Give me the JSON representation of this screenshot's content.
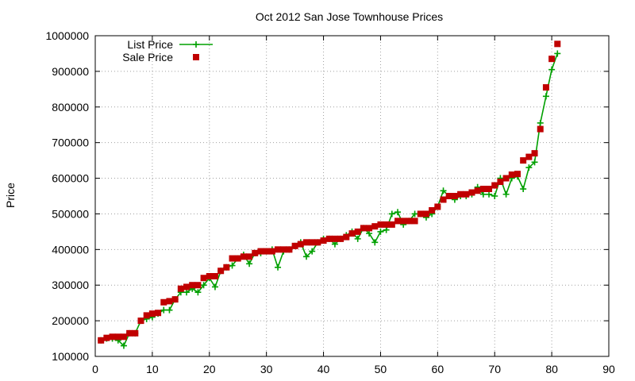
{
  "chart_data": {
    "type": "line",
    "title": "Oct 2012 San Jose Townhouse Prices",
    "xlabel": "",
    "ylabel": "Price",
    "xlim": [
      0,
      90
    ],
    "ylim": [
      100000,
      1000000
    ],
    "xticks": [
      0,
      10,
      20,
      30,
      40,
      50,
      60,
      70,
      80,
      90
    ],
    "yticks": [
      100000,
      200000,
      300000,
      400000,
      500000,
      600000,
      700000,
      800000,
      900000,
      1000000
    ],
    "grid": true,
    "legend_position": "top-left",
    "series": [
      {
        "name": "List Price",
        "style": "line+plus",
        "color": "#00a000",
        "x": [
          1,
          2,
          3,
          4,
          5,
          6,
          7,
          8,
          9,
          10,
          11,
          12,
          13,
          14,
          15,
          16,
          17,
          18,
          19,
          20,
          21,
          22,
          23,
          24,
          25,
          26,
          27,
          28,
          29,
          30,
          31,
          32,
          33,
          34,
          35,
          36,
          37,
          38,
          39,
          40,
          41,
          42,
          43,
          44,
          45,
          46,
          47,
          48,
          49,
          50,
          51,
          52,
          53,
          54,
          55,
          56,
          57,
          58,
          59,
          60,
          61,
          62,
          63,
          64,
          65,
          66,
          67,
          68,
          69,
          70,
          71,
          72,
          73,
          74,
          75,
          76,
          77,
          78,
          79,
          80,
          81
        ],
        "y": [
          145000,
          150000,
          150000,
          145000,
          130000,
          165000,
          165000,
          200000,
          205000,
          210000,
          220000,
          230000,
          230000,
          260000,
          280000,
          280000,
          290000,
          280000,
          300000,
          320000,
          295000,
          340000,
          350000,
          355000,
          375000,
          385000,
          360000,
          390000,
          390000,
          395000,
          400000,
          350000,
          395000,
          400000,
          410000,
          420000,
          380000,
          395000,
          420000,
          430000,
          430000,
          415000,
          430000,
          440000,
          450000,
          430000,
          460000,
          445000,
          420000,
          450000,
          455000,
          500000,
          505000,
          470000,
          480000,
          500000,
          500000,
          490000,
          500000,
          520000,
          565000,
          550000,
          540000,
          550000,
          550000,
          555000,
          575000,
          555000,
          555000,
          550000,
          600000,
          555000,
          600000,
          605000,
          570000,
          630000,
          645000,
          755000,
          830000,
          905000,
          950000
        ]
      },
      {
        "name": "Sale Price",
        "style": "squares",
        "color": "#c00000",
        "x": [
          1,
          2,
          3,
          4,
          5,
          6,
          7,
          8,
          9,
          10,
          11,
          12,
          13,
          14,
          15,
          16,
          17,
          18,
          19,
          20,
          21,
          22,
          23,
          24,
          25,
          26,
          27,
          28,
          29,
          30,
          31,
          32,
          33,
          34,
          35,
          36,
          37,
          38,
          39,
          40,
          41,
          42,
          43,
          44,
          45,
          46,
          47,
          48,
          49,
          50,
          51,
          52,
          53,
          54,
          55,
          56,
          57,
          58,
          59,
          60,
          61,
          62,
          63,
          64,
          65,
          66,
          67,
          68,
          69,
          70,
          71,
          72,
          73,
          74,
          75,
          76,
          77,
          78,
          79,
          80,
          81
        ],
        "y": [
          145000,
          152000,
          155000,
          155000,
          155000,
          165000,
          165000,
          200000,
          215000,
          220000,
          222000,
          252000,
          255000,
          260000,
          290000,
          295000,
          300000,
          300000,
          320000,
          325000,
          325000,
          340000,
          350000,
          375000,
          375000,
          380000,
          380000,
          390000,
          395000,
          395000,
          395000,
          400000,
          400000,
          400000,
          410000,
          415000,
          420000,
          420000,
          420000,
          425000,
          430000,
          430000,
          430000,
          435000,
          445000,
          450000,
          460000,
          460000,
          465000,
          470000,
          470000,
          470000,
          480000,
          480000,
          480000,
          480000,
          500000,
          500000,
          510000,
          520000,
          540000,
          550000,
          550000,
          555000,
          555000,
          560000,
          565000,
          570000,
          570000,
          580000,
          590000,
          600000,
          610000,
          612000,
          650000,
          660000,
          670000,
          738000,
          855000,
          935000,
          977000
        ]
      }
    ]
  }
}
